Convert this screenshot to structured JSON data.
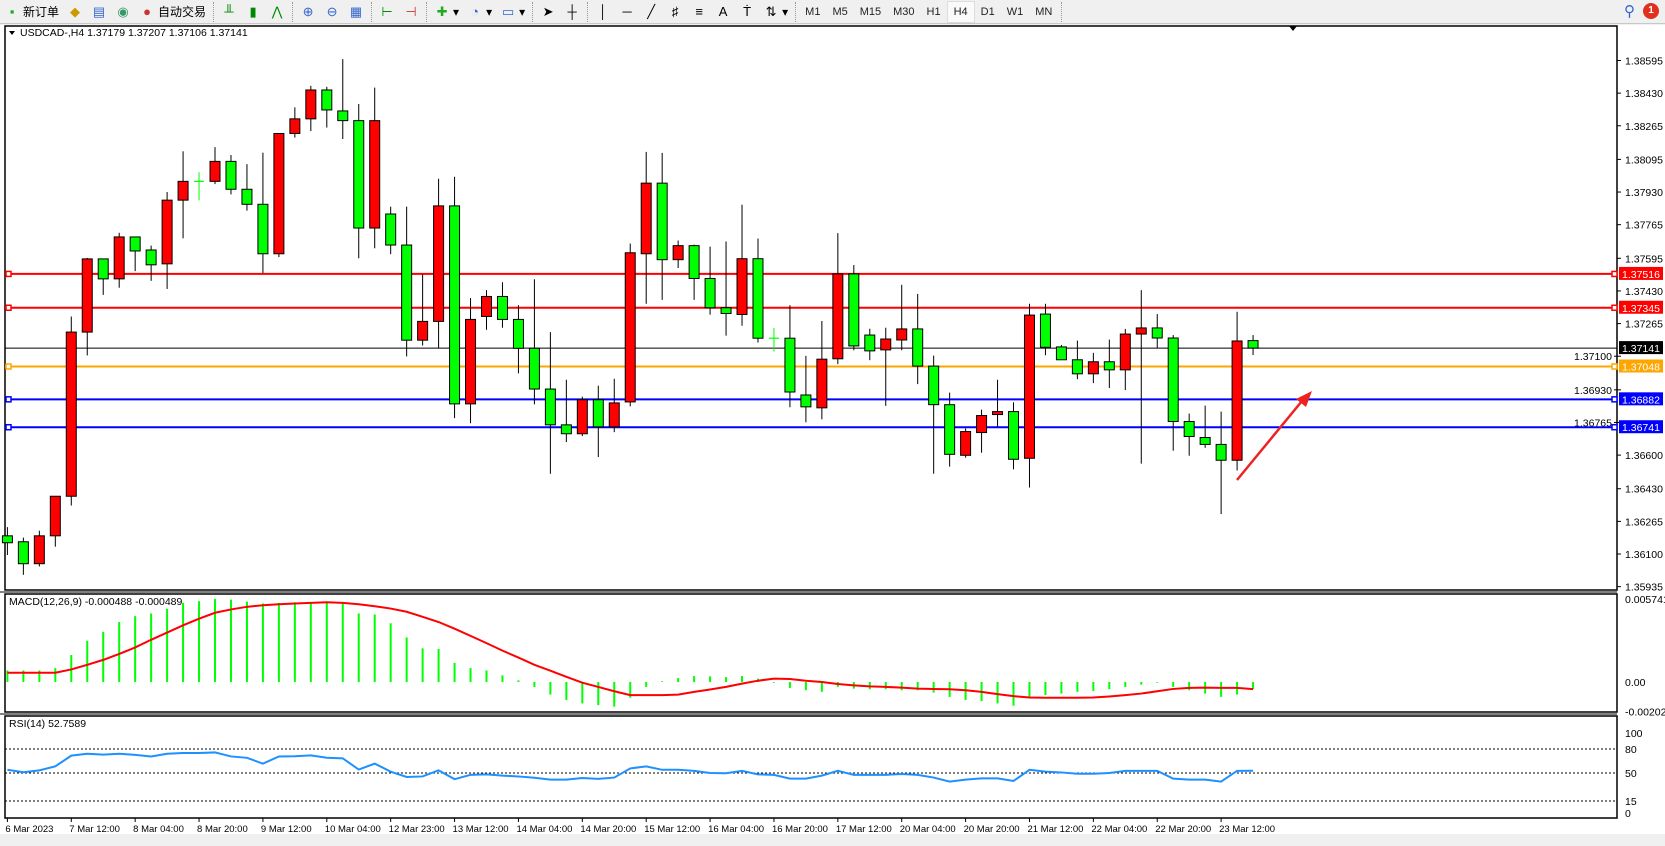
{
  "toolbar": {
    "new_order": "新订单",
    "auto_trading": "自动交易",
    "buttons": [
      "book-icon",
      "market-watch-icon",
      "signal-icon",
      "auto-trading-icon",
      "bar-chart-icon",
      "candlestick-icon",
      "line-chart-icon",
      "zoom-in-icon",
      "zoom-out-icon",
      "tile-windows-icon",
      "chart-shift-icon",
      "autoscroll-icon",
      "indicators-icon",
      "periods-icon",
      "templates-icon",
      "cursor-icon",
      "crosshair-icon",
      "vertical-line-icon",
      "horizontal-line-icon",
      "trendline-icon",
      "fibonacci-icon",
      "fibo-fan-icon",
      "text-icon",
      "text-label-icon",
      "arrows-icon"
    ],
    "timeframes": [
      "M1",
      "M5",
      "M15",
      "M30",
      "H1",
      "H4",
      "D1",
      "W1",
      "MN"
    ],
    "active_timeframe": "H4",
    "notification_count": "1"
  },
  "chart": {
    "header": "USDCAD-,H4  1.37179 1.37207 1.37106 1.37141",
    "up_color": "#ff0000",
    "down_color": "#00ff00",
    "price_labels": [
      "1.38595",
      "1.38430",
      "1.38265",
      "1.38095",
      "1.37930",
      "1.37765",
      "1.37595",
      "1.37430",
      "1.37265",
      "1.37100",
      "1.36930",
      "1.36765",
      "1.36600",
      "1.36430",
      "1.36265",
      "1.36100",
      "1.35935"
    ],
    "bid": {
      "price": "1.37141",
      "color": "#000000"
    },
    "levels": [
      {
        "price": "1.37516",
        "color": "#ff0000"
      },
      {
        "price": "1.37345",
        "color": "#ff0000"
      },
      {
        "price": "1.37048",
        "color": "#ffa500"
      },
      {
        "price": "1.36882",
        "color": "#0000ff"
      },
      {
        "price": "1.36741",
        "color": "#0000ff"
      }
    ],
    "arrow_color": "#ee2222",
    "candles": [
      [
        1.36192,
        1.36236,
        1.36095,
        1.36157
      ],
      [
        1.36162,
        1.36183,
        1.35995,
        1.36051
      ],
      [
        1.36051,
        1.36218,
        1.36037,
        1.36192
      ],
      [
        1.36192,
        1.36392,
        1.36137,
        1.36392
      ],
      [
        1.36392,
        1.37301,
        1.36345,
        1.37222
      ],
      [
        1.37222,
        1.37597,
        1.37104,
        1.37592
      ],
      [
        1.37592,
        1.37592,
        1.3741,
        1.37491
      ],
      [
        1.37491,
        1.37724,
        1.37446,
        1.37703
      ],
      [
        1.37703,
        1.37703,
        1.3753,
        1.37632
      ],
      [
        1.37637,
        1.37659,
        1.37481,
        1.37562
      ],
      [
        1.37567,
        1.3793,
        1.3744,
        1.37889
      ],
      [
        1.37889,
        1.38136,
        1.37696,
        1.37984
      ],
      [
        1.37984,
        1.3803,
        1.37888,
        1.37984
      ],
      [
        1.37984,
        1.38157,
        1.3797,
        1.38085
      ],
      [
        1.38085,
        1.38117,
        1.37918,
        1.37944
      ],
      [
        1.37944,
        1.38071,
        1.37836,
        1.37868
      ],
      [
        1.37868,
        1.38129,
        1.37521,
        1.37618
      ],
      [
        1.37618,
        1.38226,
        1.37601,
        1.38226
      ],
      [
        1.38226,
        1.38358,
        1.38205,
        1.383
      ],
      [
        1.383,
        1.38467,
        1.38238,
        1.38446
      ],
      [
        1.38446,
        1.38462,
        1.38256,
        1.38345
      ],
      [
        1.3834,
        1.38602,
        1.38198,
        1.38291
      ],
      [
        1.38291,
        1.38375,
        1.37595,
        1.37748
      ],
      [
        1.37748,
        1.38458,
        1.37646,
        1.38291
      ],
      [
        1.37819,
        1.37856,
        1.37616,
        1.37662
      ],
      [
        1.37662,
        1.37856,
        1.37099,
        1.37181
      ],
      [
        1.37181,
        1.37513,
        1.37154,
        1.37276
      ],
      [
        1.37276,
        1.37997,
        1.3714,
        1.3786
      ],
      [
        1.3786,
        1.38007,
        1.36787,
        1.36859
      ],
      [
        1.36859,
        1.37394,
        1.36761,
        1.37286
      ],
      [
        1.37301,
        1.37434,
        1.37234,
        1.37402
      ],
      [
        1.37402,
        1.37474,
        1.37244,
        1.37286
      ],
      [
        1.37286,
        1.37358,
        1.37013,
        1.3714
      ],
      [
        1.3714,
        1.37489,
        1.36857,
        1.36934
      ],
      [
        1.36934,
        1.37222,
        1.36506,
        1.36753
      ],
      [
        1.36753,
        1.36981,
        1.36666,
        1.36708
      ],
      [
        1.36708,
        1.36895,
        1.36696,
        1.3688
      ],
      [
        1.3688,
        1.36951,
        1.3659,
        1.36743
      ],
      [
        1.36743,
        1.36986,
        1.36716,
        1.36864
      ],
      [
        1.36869,
        1.3767,
        1.36847,
        1.37623
      ],
      [
        1.37618,
        1.38133,
        1.37365,
        1.37975
      ],
      [
        1.37975,
        1.38128,
        1.37385,
        1.37588
      ],
      [
        1.37588,
        1.37685,
        1.37546,
        1.37659
      ],
      [
        1.37659,
        1.37664,
        1.37385,
        1.37493
      ],
      [
        1.37493,
        1.37654,
        1.3731,
        1.37345
      ],
      [
        1.37345,
        1.3768,
        1.37204,
        1.37316
      ],
      [
        1.37311,
        1.37866,
        1.37254,
        1.37593
      ],
      [
        1.37593,
        1.37695,
        1.37169,
        1.37191
      ],
      [
        1.37191,
        1.37243,
        1.37124,
        1.37191
      ],
      [
        1.37191,
        1.37358,
        1.36842,
        1.36919
      ],
      [
        1.36904,
        1.37102,
        1.36766,
        1.36844
      ],
      [
        1.36839,
        1.37278,
        1.36781,
        1.37085
      ],
      [
        1.37087,
        1.37722,
        1.3706,
        1.37516
      ],
      [
        1.37516,
        1.37561,
        1.3713,
        1.37152
      ],
      [
        1.37207,
        1.37239,
        1.3708,
        1.37127
      ],
      [
        1.37132,
        1.37244,
        1.36849,
        1.37187
      ],
      [
        1.37182,
        1.37461,
        1.3713,
        1.37238
      ],
      [
        1.37238,
        1.37415,
        1.36959,
        1.3705
      ],
      [
        1.3705,
        1.37103,
        1.36506,
        1.36855
      ],
      [
        1.36855,
        1.36916,
        1.36542,
        1.36604
      ],
      [
        1.36599,
        1.36735,
        1.36587,
        1.36719
      ],
      [
        1.36714,
        1.3683,
        1.36612,
        1.368
      ],
      [
        1.36805,
        1.36981,
        1.36743,
        1.3682
      ],
      [
        1.3682,
        1.36867,
        1.36528,
        1.36579
      ],
      [
        1.36584,
        1.37365,
        1.36436,
        1.37308
      ],
      [
        1.37313,
        1.37365,
        1.37105,
        1.37145
      ],
      [
        1.37147,
        1.37157,
        1.37082,
        1.37082
      ],
      [
        1.37082,
        1.37179,
        1.36984,
        1.37011
      ],
      [
        1.37011,
        1.37117,
        1.36964,
        1.37072
      ],
      [
        1.37072,
        1.37184,
        1.36939,
        1.37031
      ],
      [
        1.37031,
        1.37238,
        1.36929,
        1.37212
      ],
      [
        1.37212,
        1.37434,
        1.36557,
        1.37243
      ],
      [
        1.37243,
        1.37313,
        1.37142,
        1.37192
      ],
      [
        1.37192,
        1.37207,
        1.36622,
        1.3677
      ],
      [
        1.3677,
        1.3681,
        1.36597,
        1.36694
      ],
      [
        1.36689,
        1.3685,
        1.36637,
        1.36654
      ],
      [
        1.36654,
        1.3682,
        1.36302,
        1.36574
      ],
      [
        1.36574,
        1.37325,
        1.36522,
        1.37177
      ],
      [
        1.37179,
        1.37207,
        1.37106,
        1.37141
      ]
    ]
  },
  "macd": {
    "label": "MACD(12,26,9) -0.000488 -0.000489",
    "axis_labels": [
      "0.005741",
      "0.00",
      "-0.002027"
    ],
    "hist_color": "#00ff00",
    "signal_color": "#ff0000",
    "hist": [
      0.0008,
      0.0008,
      0.0008,
      0.00096,
      0.00187,
      0.00285,
      0.00347,
      0.00415,
      0.00456,
      0.00474,
      0.00506,
      0.00547,
      0.00559,
      0.00575,
      0.0057,
      0.00556,
      0.00543,
      0.00547,
      0.00552,
      0.00552,
      0.00552,
      0.00543,
      0.00474,
      0.00467,
      0.00406,
      0.00308,
      0.00233,
      0.00228,
      0.00132,
      0.00096,
      0.0008,
      0.00046,
      0.00011,
      -0.00034,
      -0.00087,
      -0.00125,
      -0.00148,
      -0.0016,
      -0.00171,
      -0.00109,
      -0.00034,
      5e-05,
      0.00027,
      0.00041,
      0.00039,
      0.00034,
      0.00041,
      0.00023,
      -5e-05,
      -0.00041,
      -0.00057,
      -0.00068,
      -0.00034,
      -0.00046,
      -0.0005,
      -0.0005,
      -0.00057,
      -0.00057,
      -0.00073,
      -0.00103,
      -0.00125,
      -0.00132,
      -0.00148,
      -0.00164,
      -0.00103,
      -0.00091,
      -0.0008,
      -0.00068,
      -0.00062,
      -0.0005,
      -0.00034,
      -0.00018,
      -5e-05,
      -0.00034,
      -0.00057,
      -0.0008,
      -0.00103,
      -0.00087,
      -0.000488
    ],
    "signal": [
      0.00064,
      0.00064,
      0.00064,
      0.00064,
      0.00087,
      0.00119,
      0.00153,
      0.00194,
      0.00239,
      0.00292,
      0.00342,
      0.00392,
      0.00438,
      0.00479,
      0.00502,
      0.0052,
      0.00531,
      0.00538,
      0.00543,
      0.00547,
      0.00552,
      0.00547,
      0.00538,
      0.00524,
      0.00508,
      0.00486,
      0.00451,
      0.00415,
      0.00369,
      0.00319,
      0.00269,
      0.00217,
      0.00169,
      0.00119,
      0.00078,
      0.00036,
      -5e-05,
      -0.00034,
      -0.00064,
      -0.00091,
      -0.00091,
      -0.00091,
      -0.00087,
      -0.00068,
      -0.00052,
      -0.00034,
      -0.00011,
      9e-05,
      0.00023,
      0.00021,
      9e-05,
      0,
      -0.00014,
      -0.00023,
      -0.0003,
      -0.00034,
      -0.00039,
      -0.00046,
      -0.00048,
      -0.0005,
      -0.00057,
      -0.00068,
      -0.00084,
      -0.00098,
      -0.00107,
      -0.00109,
      -0.00109,
      -0.00109,
      -0.00107,
      -0.001,
      -0.00091,
      -0.0008,
      -0.00064,
      -0.00048,
      -0.00041,
      -0.00039,
      -0.00041,
      -0.00041,
      -0.000489
    ]
  },
  "rsi": {
    "label": "RSI(14) 52.7589",
    "axis_labels": [
      "100",
      "80",
      "50",
      "15",
      "0"
    ],
    "levels": [
      80,
      50,
      15
    ],
    "color": "#1e90ff",
    "values": [
      54,
      51,
      53.3,
      58.3,
      71.7,
      74,
      73,
      74,
      72.7,
      70.7,
      74,
      75,
      75,
      75.7,
      70.7,
      69,
      61.7,
      70.7,
      71,
      72,
      69,
      68.3,
      54.3,
      61.7,
      51.7,
      45,
      45.7,
      53.3,
      42.3,
      47.7,
      48.3,
      46.7,
      45.7,
      44,
      41.7,
      41.7,
      43.7,
      42.7,
      44.3,
      55.7,
      58.3,
      54,
      54,
      52.7,
      50,
      49.7,
      52.7,
      48.3,
      47.7,
      43,
      43,
      46.7,
      52.7,
      47.7,
      47.7,
      47.7,
      48.7,
      47.7,
      44.3,
      39.3,
      41.7,
      43.3,
      43.3,
      40,
      54,
      51.7,
      50.7,
      49,
      49,
      50,
      52.7,
      52.7,
      52.7,
      43,
      41.7,
      41.7,
      39.3,
      52.7,
      52.7589
    ]
  },
  "time_labels": [
    "6 Mar 2023",
    "7 Mar 12:00",
    "8 Mar 04:00",
    "8 Mar 20:00",
    "9 Mar 12:00",
    "10 Mar 04:00",
    "12 Mar 23:00",
    "13 Mar 12:00",
    "14 Mar 04:00",
    "14 Mar 20:00",
    "15 Mar 12:00",
    "16 Mar 04:00",
    "16 Mar 20:00",
    "17 Mar 12:00",
    "20 Mar 04:00",
    "20 Mar 20:00",
    "21 Mar 12:00",
    "22 Mar 04:00",
    "22 Mar 20:00",
    "23 Mar 12:00"
  ]
}
